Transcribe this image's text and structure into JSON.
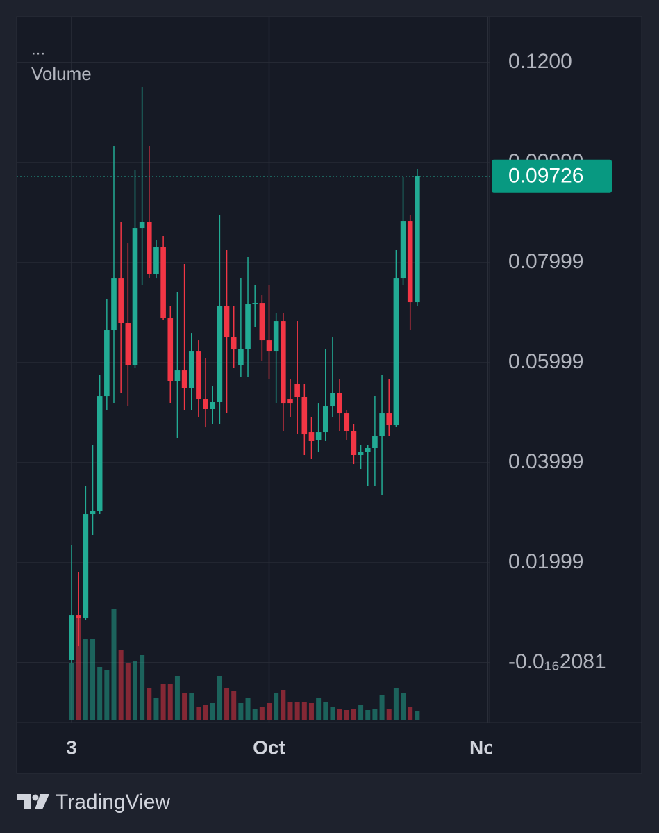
{
  "chart_data": {
    "type": "candlestick",
    "legend_label": "...",
    "open": [
      0.00056,
      0.00958,
      0.00889,
      0.02972,
      0.03042,
      0.05333,
      0.06653,
      0.07694,
      0.06792,
      0.05958,
      0.08694,
      0.08806,
      0.07764,
      0.08319,
      0.06889,
      0.05639,
      0.05847,
      0.055,
      0.06236,
      0.05264,
      0.05083,
      0.05222,
      0.07139,
      0.06514,
      0.05958,
      0.06278,
      0.07167,
      0.07194,
      0.06444,
      0.06236,
      0.06833,
      0.05264,
      0.0557,
      0.05306,
      0.04611,
      0.04458,
      0.04611,
      0.05125,
      0.05403,
      0.04986,
      0.04639,
      0.04153,
      0.04222,
      0.04292,
      0.04528,
      0.04986,
      0.0475,
      0.07694,
      0.08833,
      0.07208
    ],
    "high": [
      0.02347,
      0.01806,
      0.03528,
      0.04361,
      0.0575,
      0.07278,
      0.10333,
      0.08806,
      0.08389,
      0.09847,
      0.11514,
      0.10333,
      0.08458,
      0.08528,
      0.07139,
      0.07417,
      0.07972,
      0.06583,
      0.06444,
      0.06097,
      0.05542,
      0.08944,
      0.0825,
      0.07139,
      0.07694,
      0.08111,
      0.07556,
      0.07347,
      0.07556,
      0.07,
      0.07,
      0.05681,
      0.06833,
      0.0557,
      0.04917,
      0.05194,
      0.06278,
      0.06514,
      0.05681,
      0.05056,
      0.04778,
      0.04361,
      0.04361,
      0.05333,
      0.0575,
      0.05681,
      0.0825,
      0.09708,
      0.08944,
      0.09875
    ],
    "low": [
      0,
      0.00333,
      0.0085,
      0.02556,
      0.02972,
      0.05056,
      0.05194,
      0.05403,
      0.05125,
      0.05889,
      0.07556,
      0.07694,
      0.07694,
      0.06861,
      0.05194,
      0.045,
      0.05056,
      0.05056,
      0.04917,
      0.04708,
      0.04778,
      0.04778,
      0.04986,
      0.05889,
      0.05722,
      0.05722,
      0.06722,
      0.06028,
      0.05681,
      0.05194,
      0.04639,
      0.04917,
      0.04569,
      0.04153,
      0.04083,
      0.04222,
      0.04431,
      0.04917,
      0.04639,
      0.04458,
      0.03972,
      0.03875,
      0.03528,
      0.03528,
      0.03361,
      0.04528,
      0.04722,
      0.07556,
      0.06653,
      0.07139
    ],
    "close": [
      0.00958,
      0.00889,
      0.02972,
      0.03042,
      0.05333,
      0.06653,
      0.07694,
      0.06792,
      0.05958,
      0.08694,
      0.08806,
      0.07764,
      0.08319,
      0.06889,
      0.05639,
      0.05847,
      0.055,
      0.06236,
      0.05264,
      0.05083,
      0.05222,
      0.07139,
      0.06514,
      0.06264,
      0.06278,
      0.07167,
      0.07194,
      0.06444,
      0.06236,
      0.06833,
      0.05194,
      0.05194,
      0.05306,
      0.04569,
      0.04431,
      0.04611,
      0.05125,
      0.05403,
      0.04986,
      0.04639,
      0.04153,
      0.04222,
      0.04292,
      0.04528,
      0.04986,
      0.0475,
      0.07694,
      0.08833,
      0.07208,
      0.09726
    ],
    "volume": {
      "name": "Volume",
      "values": [
        82,
        147,
        117,
        117,
        77,
        72,
        160,
        102,
        82,
        85,
        94,
        47,
        32,
        52,
        52,
        64,
        40,
        40,
        19,
        22,
        25,
        64,
        47,
        42,
        25,
        32,
        17,
        19,
        25,
        39,
        44,
        27,
        27,
        27,
        25,
        32,
        27,
        19,
        17,
        15,
        17,
        22,
        15,
        17,
        37,
        17,
        47,
        40,
        19,
        13
      ],
      "ylim": [
        0,
        400
      ]
    },
    "up_color": "#22ab94",
    "down_color": "#f23645",
    "ylim": [
      -0.01194,
      0.12917
    ],
    "yticks": [
      {
        "value": 0.12,
        "label": "0.1200"
      },
      0.09999,
      0.07999,
      0.05999,
      0.03999,
      0.01999,
      {
        "value": -2.081e-17,
        "label": "-0.0₁₆2081"
      }
    ],
    "xlim": [
      -7.78,
      59.25
    ],
    "xticks": [
      {
        "value": 0,
        "label": "3"
      },
      {
        "value": 28,
        "label": "Oct"
      },
      {
        "value": 59,
        "label": "Nov"
      }
    ],
    "last_price": 0.09726,
    "grid": true
  },
  "footer": {
    "brand": "TradingView"
  }
}
